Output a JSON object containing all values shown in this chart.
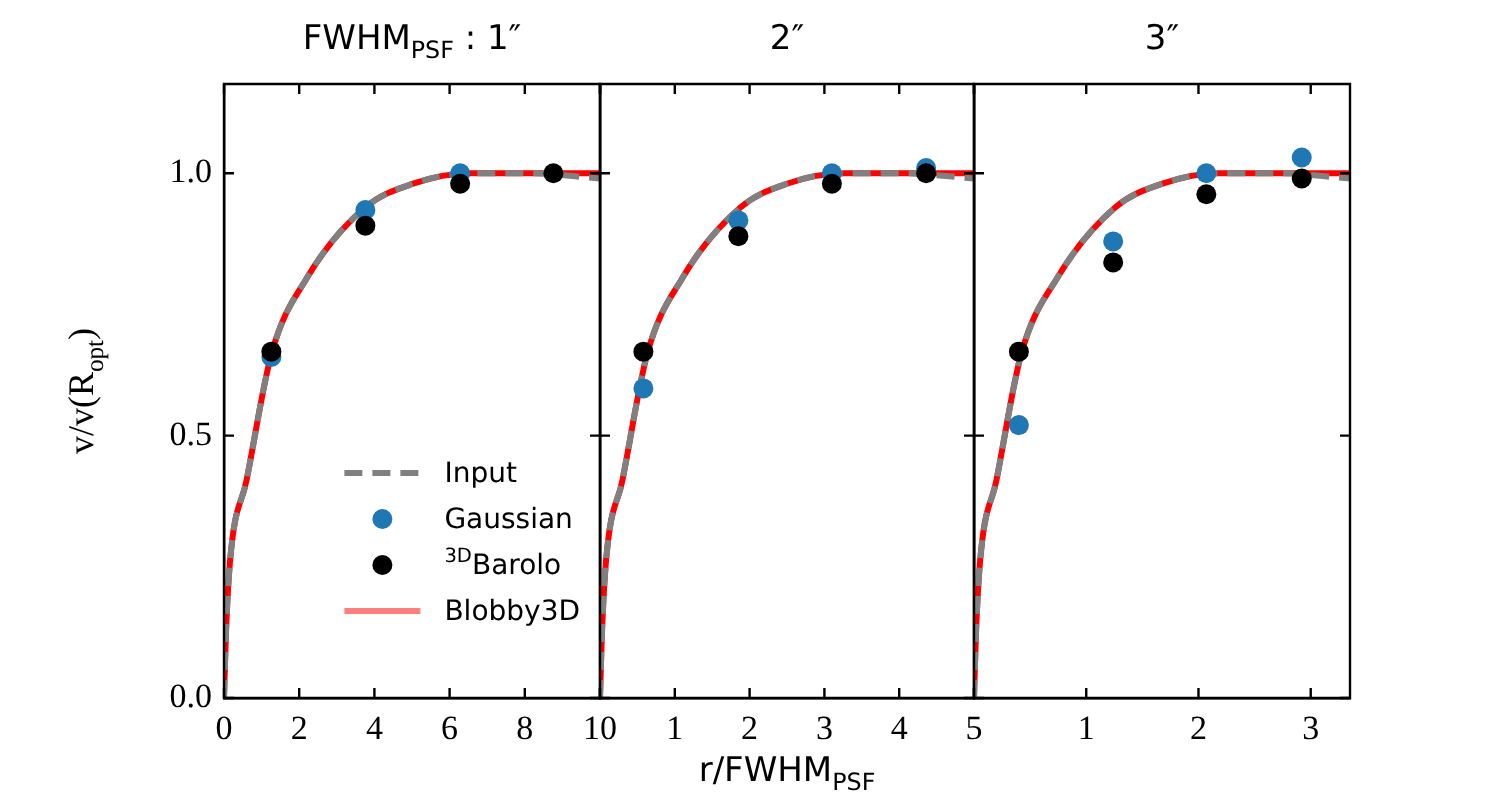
{
  "chart_data": [
    {
      "type": "line",
      "title": "FWHM$_{PSF}$ : 1″",
      "ylabel": "v/v(R$_{opt}$)",
      "xlim": [
        0,
        10
      ],
      "xticks": [
        0,
        2,
        4,
        6,
        8,
        10
      ],
      "ylim": [
        0,
        1.17
      ],
      "yticks": [
        {
          "value": 0,
          "label": "0.0"
        },
        {
          "value": 0.5,
          "label": "0.5"
        },
        {
          "value": 1,
          "label": "1.0"
        }
      ],
      "legend": "bottom right",
      "series": [
        {
          "name": "Input",
          "type": "line",
          "line_style": "dashed",
          "color": "#808080",
          "x": [
            0,
            0.05,
            0.16,
            0.6,
            1.26,
            2.2,
            3.76,
            5.03,
            6.5,
            8,
            10
          ],
          "values": [
            0,
            0.12,
            0.26,
            0.415,
            0.655,
            0.8,
            0.935,
            0.98,
            1.0,
            1.0,
            0.99
          ]
        },
        {
          "name": "Gaussian",
          "type": "scatter",
          "marker": "circle",
          "color": "#1f77b4",
          "x": [
            1.26,
            3.76,
            6.28
          ],
          "values": [
            0.65,
            0.93,
            1.0
          ]
        },
        {
          "name": "$^{3D}$Barolo",
          "type": "scatter",
          "marker": "circle",
          "color": "#000000",
          "x": [
            1.26,
            3.76,
            6.28,
            8.76
          ],
          "values": [
            0.66,
            0.9,
            0.98,
            1.0
          ]
        },
        {
          "name": "Blobby3D",
          "type": "line",
          "line_style": "solid",
          "color": "#ff0000",
          "x": [
            0,
            0.05,
            0.16,
            0.6,
            1.26,
            2.2,
            3.76,
            5.03,
            6.5,
            8,
            10
          ],
          "values": [
            0,
            0.12,
            0.26,
            0.415,
            0.655,
            0.8,
            0.935,
            0.98,
            1.0,
            1.0,
            1.0
          ]
        }
      ]
    },
    {
      "type": "line",
      "title": "2″",
      "xlabel": "r/FWHM$_{PSF}$",
      "xlim": [
        0,
        5
      ],
      "xticks": [
        {
          "value": 0,
          "label": null
        },
        1,
        2,
        3,
        4,
        5
      ],
      "ylim": [
        0,
        1.17
      ],
      "yticks": [
        0,
        0.5,
        1
      ],
      "tick_labels": "x",
      "series": [
        {
          "type": "line",
          "line_style": "dashed",
          "color": "#808080",
          "x": [
            0,
            0.025,
            0.08,
            0.3,
            0.63,
            1.1,
            1.88,
            2.5,
            3.25,
            4,
            5
          ],
          "values": [
            0,
            0.12,
            0.26,
            0.415,
            0.655,
            0.8,
            0.935,
            0.98,
            1.0,
            1.0,
            0.99
          ]
        },
        {
          "type": "scatter",
          "marker": "circle",
          "color": "#1f77b4",
          "x": [
            0.58,
            1.85,
            3.1,
            4.36
          ],
          "values": [
            0.59,
            0.91,
            1.0,
            1.01
          ]
        },
        {
          "type": "scatter",
          "marker": "circle",
          "color": "#000000",
          "x": [
            0.58,
            1.85,
            3.1,
            4.36
          ],
          "values": [
            0.66,
            0.88,
            0.98,
            1.0
          ]
        },
        {
          "type": "line",
          "line_style": "solid",
          "color": "#ff0000",
          "x": [
            0,
            0.025,
            0.08,
            0.3,
            0.63,
            1.1,
            1.88,
            2.5,
            3.25,
            4,
            5
          ],
          "values": [
            0,
            0.12,
            0.26,
            0.415,
            0.655,
            0.8,
            0.935,
            0.98,
            1.0,
            1.0,
            1.0
          ]
        }
      ]
    },
    {
      "type": "line",
      "title": "3″",
      "xlim": [
        0,
        3.35
      ],
      "xticks": [
        {
          "value": 0,
          "label": null
        },
        1,
        2,
        3
      ],
      "ylim": [
        0,
        1.17
      ],
      "yticks": [
        0,
        0.5,
        1
      ],
      "tick_labels": "x",
      "series": [
        {
          "type": "line",
          "line_style": "dashed",
          "color": "#808080",
          "x": [
            0,
            0.017,
            0.054,
            0.2,
            0.42,
            0.74,
            1.26,
            1.68,
            2.17,
            2.68,
            3.35
          ],
          "values": [
            0,
            0.12,
            0.26,
            0.415,
            0.655,
            0.8,
            0.935,
            0.98,
            1.0,
            1.0,
            0.99
          ]
        },
        {
          "type": "scatter",
          "marker": "circle",
          "color": "#1f77b4",
          "x": [
            0.4,
            1.24,
            2.07,
            2.92
          ],
          "values": [
            0.52,
            0.87,
            1.0,
            1.03
          ]
        },
        {
          "type": "scatter",
          "marker": "circle",
          "color": "#000000",
          "x": [
            0.4,
            1.24,
            2.07,
            2.92
          ],
          "values": [
            0.66,
            0.83,
            0.96,
            0.99
          ]
        },
        {
          "type": "line",
          "line_style": "solid",
          "color": "#ff0000",
          "x": [
            0,
            0.017,
            0.054,
            0.2,
            0.42,
            0.74,
            1.26,
            1.68,
            2.17,
            2.68,
            3.35
          ],
          "values": [
            0,
            0.12,
            0.26,
            0.415,
            0.655,
            0.8,
            0.935,
            0.98,
            1.0,
            1.0,
            1.0
          ]
        }
      ]
    }
  ]
}
